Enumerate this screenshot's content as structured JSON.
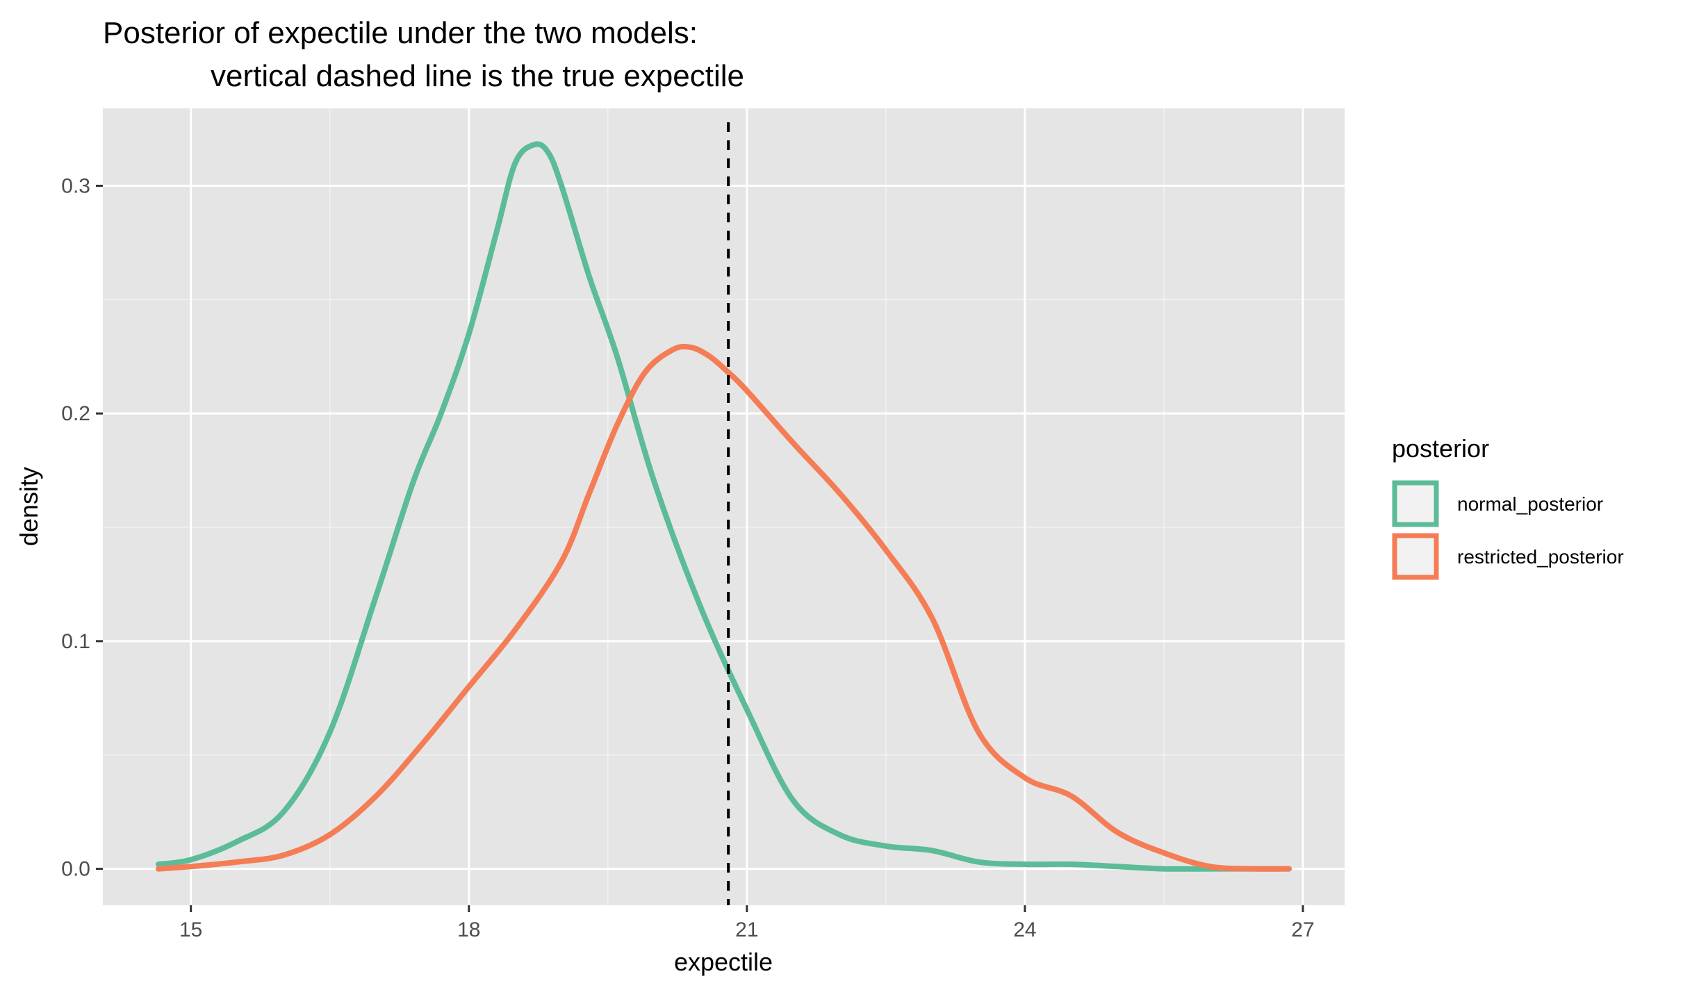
{
  "chart_data": {
    "type": "line",
    "title": "Posterior of expectile under the two models:",
    "subtitle": "vertical dashed line is the true expectile",
    "xlabel": "expectile",
    "ylabel": "density",
    "xlim": [
      14.05,
      27.45
    ],
    "ylim": [
      -0.016,
      0.334
    ],
    "x_ticks": [
      15,
      18,
      21,
      24,
      27
    ],
    "x_tick_labels": [
      "15",
      "18",
      "21",
      "24",
      "27"
    ],
    "y_ticks": [
      0.0,
      0.1,
      0.2,
      0.3
    ],
    "y_tick_labels": [
      "0.0",
      "0.1",
      "0.2",
      "0.3"
    ],
    "grid": true,
    "legend": {
      "title": "posterior",
      "position": "right"
    },
    "vline": {
      "x": 20.8,
      "style": "dashed",
      "color": "#000000"
    },
    "series": [
      {
        "name": "normal_posterior",
        "color": "#5bbc97",
        "x": [
          14.65,
          15.0,
          15.5,
          16.0,
          16.5,
          17.0,
          17.4,
          17.7,
          18.0,
          18.3,
          18.5,
          18.7,
          18.85,
          19.0,
          19.3,
          19.6,
          20.0,
          20.5,
          21.0,
          21.5,
          22.0,
          22.5,
          23.0,
          23.5,
          24.0,
          24.5,
          25.0,
          25.5,
          26.0,
          26.5,
          26.85
        ],
        "values": [
          0.002,
          0.004,
          0.012,
          0.025,
          0.06,
          0.12,
          0.17,
          0.2,
          0.235,
          0.28,
          0.31,
          0.318,
          0.315,
          0.3,
          0.26,
          0.225,
          0.17,
          0.115,
          0.07,
          0.03,
          0.015,
          0.01,
          0.008,
          0.003,
          0.002,
          0.002,
          0.001,
          0.0,
          0.0,
          0.0,
          0.0
        ]
      },
      {
        "name": "restricted_posterior",
        "color": "#f47d55",
        "x": [
          14.65,
          15.0,
          15.5,
          16.0,
          16.5,
          17.0,
          17.5,
          18.0,
          18.5,
          19.0,
          19.3,
          19.6,
          19.9,
          20.2,
          20.4,
          20.6,
          20.8,
          21.0,
          21.5,
          22.0,
          22.5,
          23.0,
          23.5,
          24.0,
          24.5,
          25.0,
          25.5,
          26.0,
          26.5,
          26.85
        ],
        "values": [
          0.0,
          0.001,
          0.003,
          0.006,
          0.015,
          0.032,
          0.055,
          0.08,
          0.105,
          0.135,
          0.165,
          0.195,
          0.218,
          0.228,
          0.229,
          0.225,
          0.218,
          0.21,
          0.187,
          0.165,
          0.14,
          0.11,
          0.06,
          0.04,
          0.032,
          0.016,
          0.007,
          0.001,
          0.0,
          0.0
        ]
      }
    ]
  }
}
